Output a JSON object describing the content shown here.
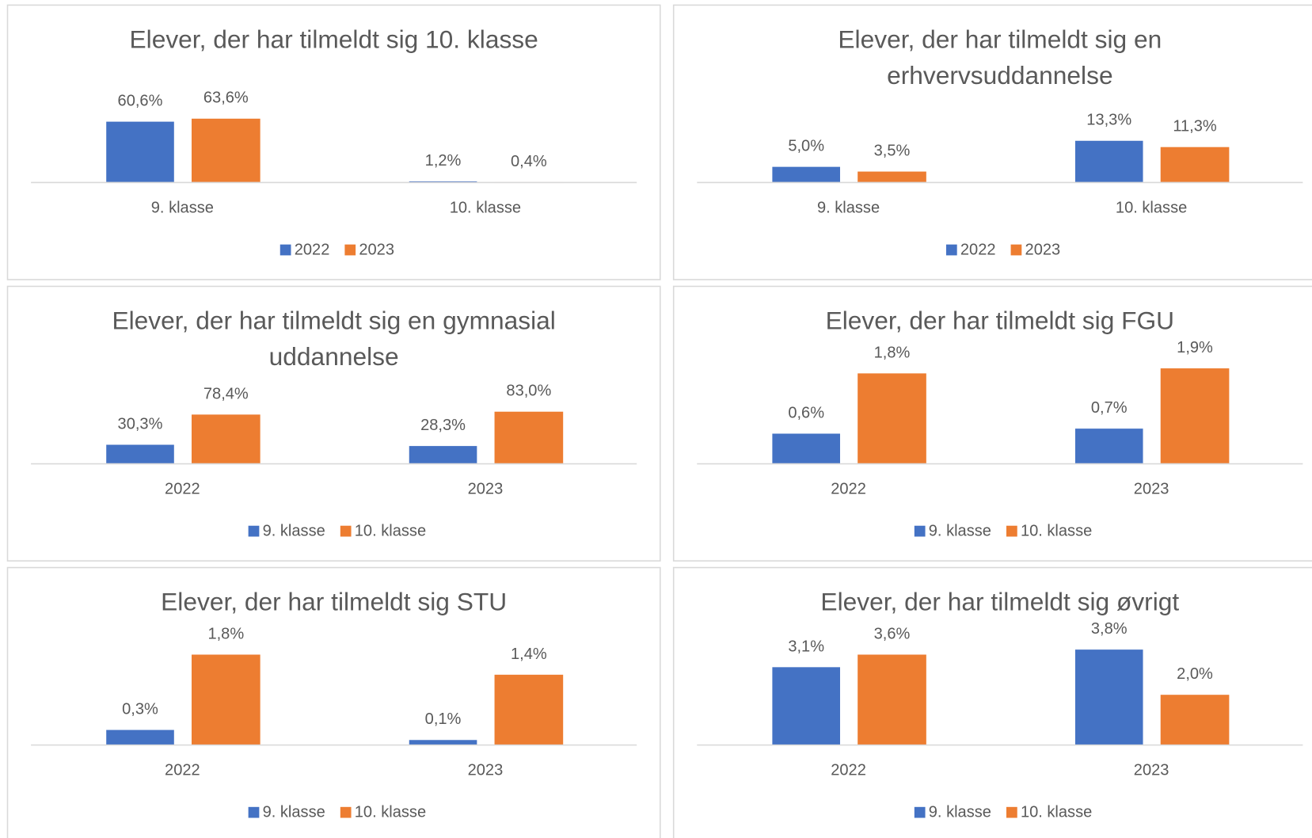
{
  "chart_data": [
    {
      "type": "bar",
      "title": "Elever, der har tilmeldt sig 10. klasse",
      "categories": [
        "9. klasse",
        "10. klasse"
      ],
      "ylim": [
        0,
        100
      ],
      "series": [
        {
          "name": "2022",
          "color": "#4472c4",
          "values": [
            60.6,
            1.2
          ],
          "value_labels": [
            "60,6%",
            "1,2%"
          ]
        },
        {
          "name": "2023",
          "color": "#ed7d31",
          "values": [
            63.6,
            0.4
          ],
          "value_labels": [
            "63,6%",
            "0,4%"
          ]
        }
      ]
    },
    {
      "type": "bar",
      "title": "Elever, der har tilmeldt sig en erhvervsuddannelse",
      "categories": [
        "9. klasse",
        "10. klasse"
      ],
      "ylim": [
        0,
        32
      ],
      "series": [
        {
          "name": "2022",
          "color": "#4472c4",
          "values": [
            5.0,
            13.3
          ],
          "value_labels": [
            "5,0%",
            "13,3%"
          ]
        },
        {
          "name": "2023",
          "color": "#ed7d31",
          "values": [
            3.5,
            11.3
          ],
          "value_labels": [
            "3,5%",
            "11,3%"
          ]
        }
      ]
    },
    {
      "type": "bar",
      "title": "Elever, der har tilmeldt sig en gymnasial uddannelse",
      "categories": [
        "2022",
        "2023"
      ],
      "ylim": [
        0,
        160
      ],
      "series": [
        {
          "name": "9. klasse",
          "color": "#4472c4",
          "values": [
            30.3,
            28.3
          ],
          "value_labels": [
            "30,3%",
            "28,3%"
          ]
        },
        {
          "name": "10. klasse",
          "color": "#ed7d31",
          "values": [
            78.4,
            83.0
          ],
          "value_labels": [
            "78,4%",
            "83,0%"
          ]
        }
      ]
    },
    {
      "type": "bar",
      "title": "Elever, der har tilmeldt sig FGU",
      "categories": [
        "2022",
        "2023"
      ],
      "ylim": [
        0,
        2
      ],
      "series": [
        {
          "name": "9. klasse",
          "color": "#4472c4",
          "values": [
            0.6,
            0.7
          ],
          "value_labels": [
            "0,6%",
            "0,7%"
          ]
        },
        {
          "name": "10. klasse",
          "color": "#ed7d31",
          "values": [
            1.8,
            1.9
          ],
          "value_labels": [
            "1,8%",
            "1,9%"
          ]
        }
      ]
    },
    {
      "type": "bar",
      "title": "Elever, der har tilmeldt sig STU",
      "categories": [
        "2022",
        "2023"
      ],
      "ylim": [
        0,
        2
      ],
      "series": [
        {
          "name": "9. klasse",
          "color": "#4472c4",
          "values": [
            0.3,
            0.1
          ],
          "value_labels": [
            "0,3%",
            "0,1%"
          ]
        },
        {
          "name": "10. klasse",
          "color": "#ed7d31",
          "values": [
            1.8,
            1.4
          ],
          "value_labels": [
            "1,8%",
            "1,4%"
          ]
        }
      ]
    },
    {
      "type": "bar",
      "title": "Elever, der har tilmeldt sig øvrigt",
      "categories": [
        "2022",
        "2023"
      ],
      "ylim": [
        0,
        4
      ],
      "series": [
        {
          "name": "9. klasse",
          "color": "#4472c4",
          "values": [
            3.1,
            3.8
          ],
          "value_labels": [
            "3,1%",
            "3,8%"
          ]
        },
        {
          "name": "10. klasse",
          "color": "#ed7d31",
          "values": [
            3.6,
            2.0
          ],
          "value_labels": [
            "3,6%",
            "2,0%"
          ]
        }
      ]
    }
  ]
}
